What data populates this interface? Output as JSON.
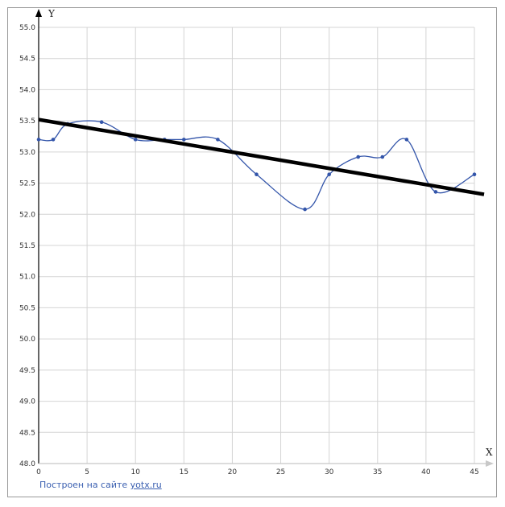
{
  "chart_data": {
    "type": "line",
    "xlabel": "X",
    "ylabel": "Y",
    "xlim": [
      0,
      45
    ],
    "ylim": [
      48.0,
      55.0
    ],
    "x_ticks": [
      "0",
      "5",
      "10",
      "15",
      "20",
      "25",
      "30",
      "35",
      "40",
      "45"
    ],
    "y_ticks": [
      "48.0",
      "48.5",
      "49.0",
      "49.5",
      "50.0",
      "50.5",
      "51.0",
      "51.5",
      "52.0",
      "52.5",
      "53.0",
      "53.5",
      "54.0",
      "54.5",
      "55.0"
    ],
    "grid": true,
    "series": [
      {
        "style": "smooth-line-with-markers",
        "color": "#3355aa",
        "points": [
          [
            0,
            53.2
          ],
          [
            1.5,
            53.2
          ],
          [
            3,
            53.45
          ],
          [
            6.5,
            53.48
          ],
          [
            10,
            53.2
          ],
          [
            13,
            53.2
          ],
          [
            15,
            53.2
          ],
          [
            18.5,
            53.2
          ],
          [
            22.5,
            52.64
          ],
          [
            27.5,
            52.08
          ],
          [
            30,
            52.64
          ],
          [
            33,
            52.92
          ],
          [
            35.5,
            52.92
          ],
          [
            38,
            53.2
          ],
          [
            41,
            52.36
          ],
          [
            45,
            52.64
          ]
        ]
      },
      {
        "style": "thick-line",
        "color": "#000000",
        "points": [
          [
            0,
            53.52
          ],
          [
            46,
            52.32
          ]
        ]
      }
    ]
  },
  "credit": {
    "prefix": "Построен на сайте",
    "link": "yotx.ru"
  }
}
